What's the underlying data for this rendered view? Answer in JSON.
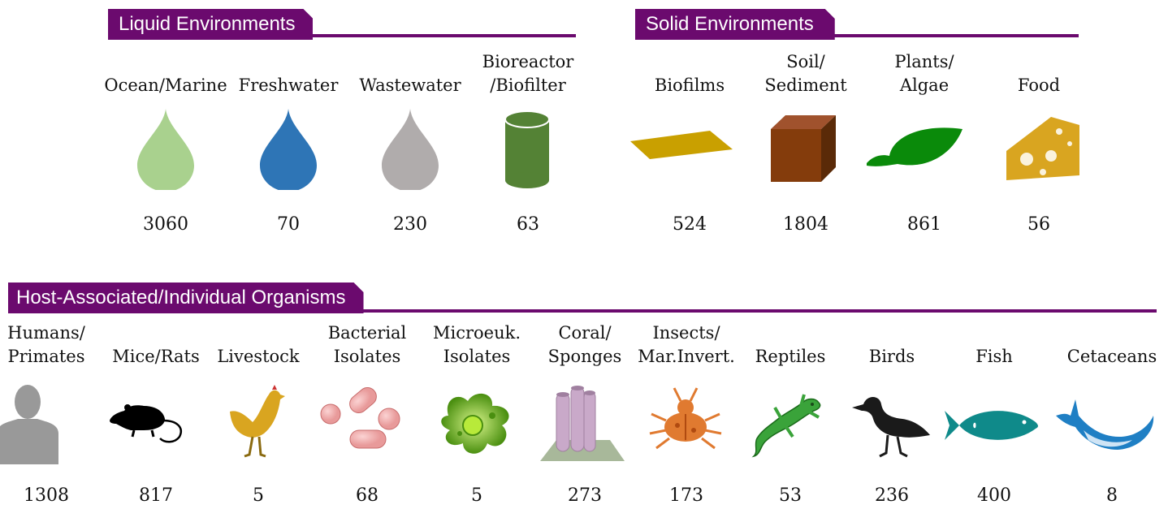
{
  "sections": {
    "liquid": {
      "title": "Liquid Environments",
      "items": [
        {
          "line1": "",
          "line2": "Ocean/Marine",
          "count": "3060",
          "icon": "drop-icon",
          "color": "#a9d18e"
        },
        {
          "line1": "",
          "line2": "Freshwater",
          "count": "70",
          "icon": "drop-icon",
          "color": "#2e75b6"
        },
        {
          "line1": "",
          "line2": "Wastewater",
          "count": "230",
          "icon": "drop-icon",
          "color": "#b0acac"
        },
        {
          "line1": "Bioreactor",
          "line2": "/Biofilter",
          "count": "63",
          "icon": "cylinder-icon",
          "color": "#548235"
        }
      ]
    },
    "solid": {
      "title": "Solid Environments",
      "items": [
        {
          "line1": "",
          "line2": "Biofilms",
          "count": "524",
          "icon": "film-icon",
          "color": "#c9a000"
        },
        {
          "line1": "Soil/",
          "line2": "Sediment",
          "count": "1804",
          "icon": "cube-icon",
          "color": "#843c0c"
        },
        {
          "line1": "Plants/",
          "line2": "Algae",
          "count": "861",
          "icon": "leaf-icon",
          "color": "#0a8a0a"
        },
        {
          "line1": "",
          "line2": "Food",
          "count": "56",
          "icon": "cheese-icon",
          "color": "#d9a520"
        }
      ]
    },
    "host": {
      "title": "Host-Associated/Individual Organisms",
      "items": [
        {
          "line1": "Humans/",
          "line2": "Primates",
          "count": "1308",
          "icon": "human-icon",
          "color": "#999999"
        },
        {
          "line1": "",
          "line2": "Mice/Rats",
          "count": "817",
          "icon": "mouse-icon",
          "color": "#000000"
        },
        {
          "line1": "",
          "line2": "Livestock",
          "count": "5",
          "icon": "chicken-icon",
          "color": "#d9a520"
        },
        {
          "line1": "Bacterial",
          "line2": "Isolates",
          "count": "68",
          "icon": "bacteria-icon",
          "color": "#e89a9a"
        },
        {
          "line1": "Microeuk.",
          "line2": "Isolates",
          "count": "5",
          "icon": "microeukaryote-icon",
          "color": "#7fc31c"
        },
        {
          "line1": "Coral/",
          "line2": "Sponges",
          "count": "273",
          "icon": "sponge-icon",
          "color": "#c9a9c9"
        },
        {
          "line1": "Insects/",
          "line2": "Mar.Invert.",
          "count": "173",
          "icon": "insect-icon",
          "color": "#e07a30"
        },
        {
          "line1": "",
          "line2": "Reptiles",
          "count": "53",
          "icon": "lizard-icon",
          "color": "#3aa33a"
        },
        {
          "line1": "",
          "line2": "Birds",
          "count": "236",
          "icon": "bird-icon",
          "color": "#1a1a1a"
        },
        {
          "line1": "",
          "line2": "Fish",
          "count": "400",
          "icon": "fish-icon",
          "color": "#0f8a8a"
        },
        {
          "line1": "",
          "line2": "Cetaceans",
          "count": "8",
          "icon": "whale-icon",
          "color": "#1f7fc4"
        }
      ]
    }
  }
}
